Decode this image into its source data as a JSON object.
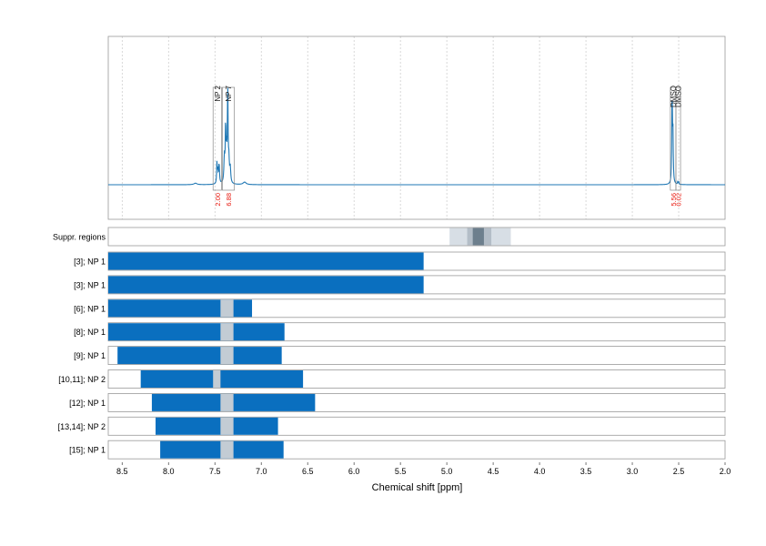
{
  "chart_data": {
    "type": "area",
    "x_axis": {
      "label": "Chemical shift [ppm]",
      "range": [
        8.65,
        2.0
      ],
      "reversed": true,
      "ticks": [
        8.5,
        8.0,
        7.5,
        7.0,
        6.5,
        6.0,
        5.5,
        5.0,
        4.5,
        4.0,
        3.5,
        3.0,
        2.5,
        2.0
      ],
      "tick_labels": [
        "8.5",
        "8.0",
        "7.5",
        "7.0",
        "6.5",
        "6.0",
        "5.5",
        "5.0",
        "4.5",
        "4.0",
        "3.5",
        "3.0",
        "2.5",
        "2.0"
      ]
    },
    "grid": true,
    "colors": {
      "spectrum": "#1f77b4",
      "bar": "#0a6fbf",
      "gap": "#c3ccd4",
      "integral": "#e8190f",
      "suppr_light": "#d7dee5",
      "suppr_mid": "#b3bdc7",
      "suppr_dark": "#6d7f8d",
      "frame": "#999999"
    },
    "spectrum": {
      "baseline": 0,
      "peaks": [
        {
          "ppm": 7.478,
          "height": 0.22,
          "width": 0.004
        },
        {
          "ppm": 7.468,
          "height": 0.12,
          "width": 0.004
        },
        {
          "ppm": 7.455,
          "height": 0.2,
          "width": 0.005
        },
        {
          "ppm": 7.398,
          "height": 0.26,
          "width": 0.006
        },
        {
          "ppm": 7.385,
          "height": 0.55,
          "width": 0.004
        },
        {
          "ppm": 7.375,
          "height": 0.3,
          "width": 0.005
        },
        {
          "ppm": 7.362,
          "height": 0.95,
          "width": 0.004
        },
        {
          "ppm": 7.35,
          "height": 0.22,
          "width": 0.006
        },
        {
          "ppm": 7.335,
          "height": 0.15,
          "width": 0.006
        },
        {
          "ppm": 7.18,
          "height": 0.025,
          "width": 0.02
        },
        {
          "ppm": 7.71,
          "height": 0.015,
          "width": 0.02
        },
        {
          "ppm": 2.571,
          "height": 0.9,
          "width": 0.004
        },
        {
          "ppm": 2.562,
          "height": 0.48,
          "width": 0.004
        },
        {
          "ppm": 2.51,
          "height": 0.03,
          "width": 0.003
        },
        {
          "ppm": 2.5,
          "height": 0.025,
          "width": 0.003
        }
      ]
    },
    "peak_regions": [
      {
        "label": "NP 2",
        "from": 7.52,
        "to": 7.43,
        "integral": "2.00"
      },
      {
        "label": "NP 7",
        "from": 7.42,
        "to": 7.29,
        "integral": "6.88"
      },
      {
        "label": "DMSO",
        "from": 2.59,
        "to": 2.53,
        "integral": "5.56"
      },
      {
        "label": "DMSO",
        "from": 2.53,
        "to": 2.48,
        "integral": "0.02"
      }
    ],
    "suppressed_regions": {
      "label": "Suppr. regions",
      "layers": [
        {
          "from": 4.97,
          "to": 4.31,
          "shade": "light"
        },
        {
          "from": 4.78,
          "to": 4.52,
          "shade": "mid"
        },
        {
          "from": 4.72,
          "to": 4.6,
          "shade": "dark"
        }
      ]
    },
    "ranges": [
      {
        "label": "[3]; NP 1",
        "from": 8.65,
        "to": 5.25,
        "gap": null
      },
      {
        "label": "[3]; NP 1",
        "from": 8.65,
        "to": 5.25,
        "gap": null
      },
      {
        "label": "[6]; NP 1",
        "from": 8.65,
        "to": 7.1,
        "gap": [
          7.44,
          7.3
        ]
      },
      {
        "label": "[8]; NP 1",
        "from": 8.65,
        "to": 6.75,
        "gap": [
          7.44,
          7.3
        ]
      },
      {
        "label": "[9]; NP 1",
        "from": 8.55,
        "to": 6.78,
        "gap": [
          7.44,
          7.3
        ]
      },
      {
        "label": "[10,11]; NP 2",
        "from": 8.3,
        "to": 6.55,
        "gap": [
          7.52,
          7.44
        ]
      },
      {
        "label": "[12]; NP 1",
        "from": 8.18,
        "to": 6.42,
        "gap": [
          7.44,
          7.3
        ]
      },
      {
        "label": "[13,14]; NP 2",
        "from": 8.14,
        "to": 6.82,
        "gap": [
          7.44,
          7.3
        ]
      },
      {
        "label": "[15]; NP 1",
        "from": 8.09,
        "to": 6.76,
        "gap": [
          7.44,
          7.3
        ]
      }
    ]
  }
}
